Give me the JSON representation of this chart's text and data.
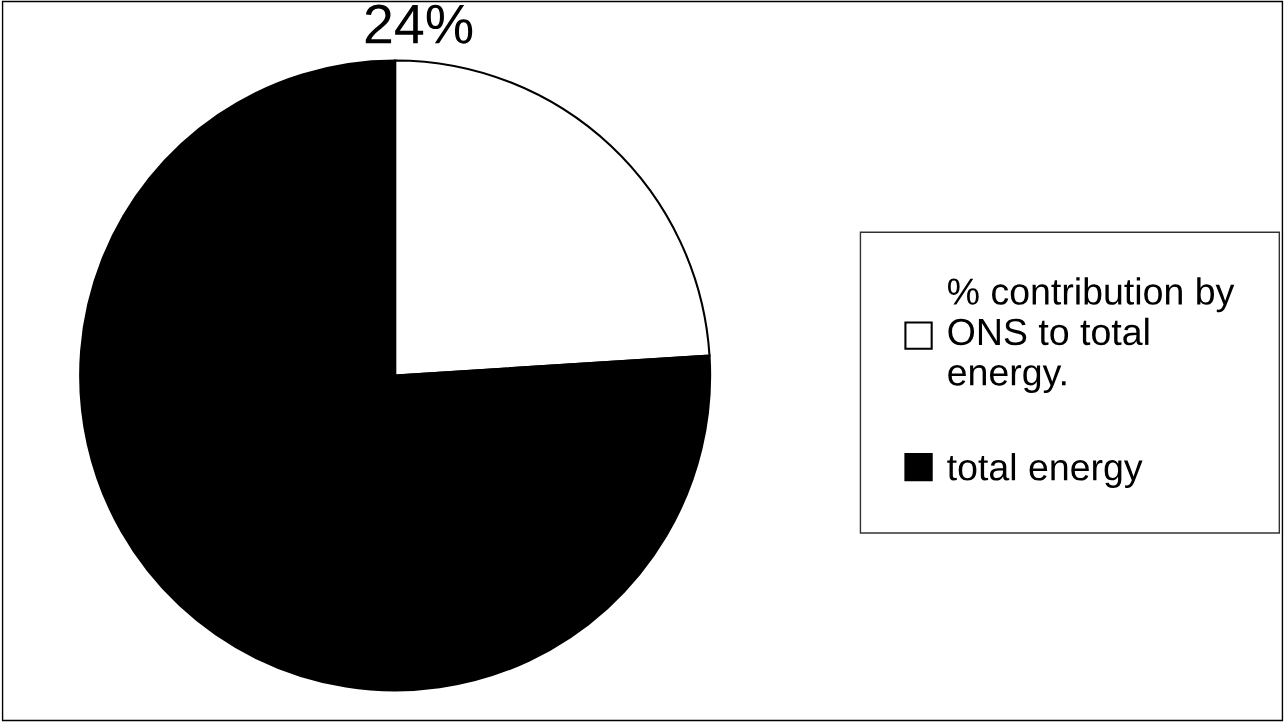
{
  "chart_data": {
    "type": "pie",
    "categories": [
      "% contribution by ONS to total energy.",
      "total energy"
    ],
    "values": [
      24,
      76
    ],
    "colors": [
      "#ffffff",
      "#000000"
    ],
    "value_labels": [
      "24%",
      null
    ],
    "legend": "right"
  }
}
